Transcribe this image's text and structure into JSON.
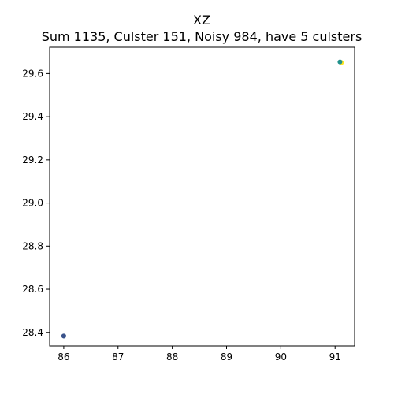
{
  "chart_data": {
    "type": "scatter",
    "title": "XZ",
    "subtitle": "Sum 1135, Culster 151, Noisy 984, have 5 culsters",
    "xlabel": "",
    "ylabel": "",
    "xlim": [
      85.74,
      91.36
    ],
    "ylim": [
      28.337,
      29.722
    ],
    "xticks": [
      86,
      87,
      88,
      89,
      90,
      91
    ],
    "yticks": [
      28.4,
      28.6,
      28.8,
      29.0,
      29.2,
      29.4,
      29.6
    ],
    "grid": false,
    "series": [
      {
        "color": "#31688e",
        "points": [
          [
            86.0,
            28.383
          ]
        ]
      },
      {
        "color": "#3b528b",
        "points": [
          [
            86.0,
            28.383
          ]
        ]
      },
      {
        "color": "#35b779",
        "points": [
          [
            91.1,
            29.653
          ]
        ]
      },
      {
        "color": "#fde725",
        "points": [
          [
            91.12,
            29.651
          ]
        ]
      },
      {
        "color": "#21918c",
        "points": [
          [
            91.09,
            29.654
          ]
        ]
      }
    ]
  }
}
